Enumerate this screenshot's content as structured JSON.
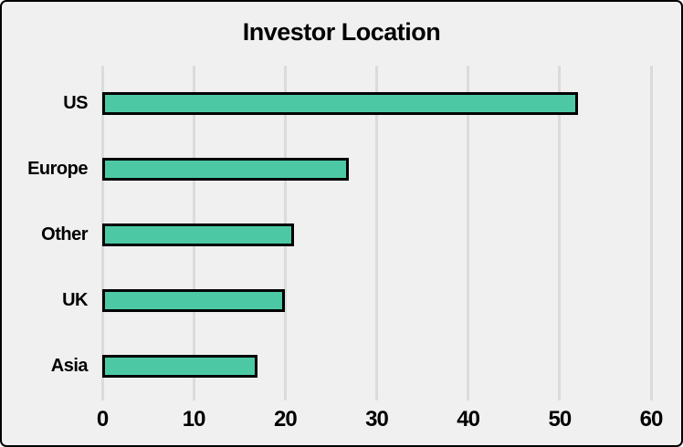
{
  "chart_data": {
    "type": "bar",
    "orientation": "horizontal",
    "title": "Investor Location",
    "categories": [
      "US",
      "Europe",
      "Other",
      "UK",
      "Asia"
    ],
    "values": [
      52,
      27,
      21,
      20,
      17
    ],
    "xlabel": "",
    "ylabel": "",
    "xlim": [
      0,
      60
    ],
    "xticks": [
      0,
      10,
      20,
      30,
      40,
      50,
      60
    ],
    "grid": "vertical-only",
    "legend": "none",
    "colors": {
      "bar_fill": "#4cc9a4",
      "bar_edge": "#000000",
      "background": "#f0f0f0",
      "gridline": "#dbdbdb",
      "text": "#000000",
      "figure_border": "#000000"
    }
  }
}
